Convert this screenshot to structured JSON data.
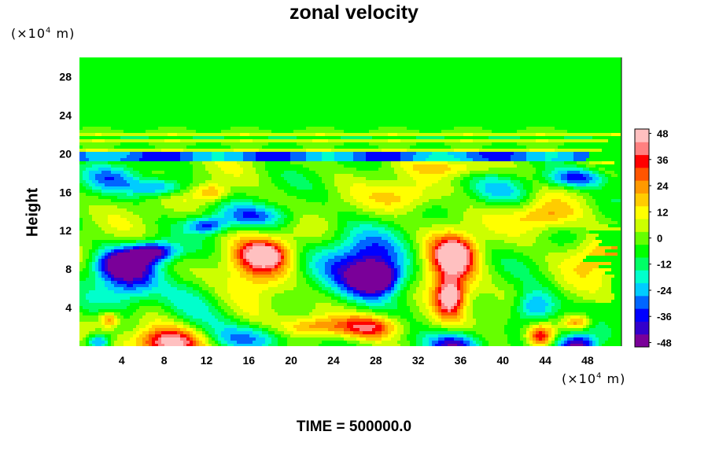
{
  "chart_data": {
    "type": "heatmap",
    "title": "zonal velocity",
    "xlabel": "",
    "ylabel": "Height",
    "x_unit_prefix": "(×10",
    "x_unit_exp": "4",
    "x_unit_suffix": " m)",
    "y_unit_prefix": "(×10",
    "y_unit_exp": "4",
    "y_unit_suffix": " m)",
    "x_ticks": [
      4,
      8,
      12,
      16,
      20,
      24,
      28,
      32,
      36,
      40,
      44,
      48
    ],
    "y_ticks": [
      4,
      8,
      12,
      16,
      20,
      24,
      28
    ],
    "xlim": [
      0,
      51.2
    ],
    "ylim": [
      0,
      30
    ],
    "colorbar": {
      "ticks": [
        48,
        36,
        24,
        12,
        0,
        -12,
        -24,
        -36,
        -48
      ],
      "range": [
        -50,
        50
      ],
      "colors": [
        "#7a0099",
        "#3300cc",
        "#0000ff",
        "#0066ff",
        "#00ccff",
        "#00ffcc",
        "#00ff66",
        "#00ff00",
        "#66ff00",
        "#ccff00",
        "#ffff00",
        "#ffcc00",
        "#ff9900",
        "#ff5500",
        "#ff0000",
        "#ff8080",
        "#ffc0c0"
      ]
    },
    "features": [
      {
        "x": 8.5,
        "y": 0.3,
        "v": 55,
        "rx": 3.2,
        "ry": 1.6
      },
      {
        "x": 2.8,
        "y": 2.8,
        "v": 28,
        "rx": 0.9,
        "ry": 0.8
      },
      {
        "x": 1.8,
        "y": 0.4,
        "v": -38,
        "rx": 1.2,
        "ry": 0.9
      },
      {
        "x": 4.5,
        "y": 6.5,
        "v": -28,
        "rx": 3.0,
        "ry": 3.0
      },
      {
        "x": 4.0,
        "y": 8.5,
        "v": -42,
        "rx": 2.5,
        "ry": 1.5
      },
      {
        "x": 7.0,
        "y": 9.8,
        "v": -45,
        "rx": 2.2,
        "ry": 1.0
      },
      {
        "x": 10.5,
        "y": 5.0,
        "v": -18,
        "rx": 3.0,
        "ry": 2.5
      },
      {
        "x": 16.8,
        "y": 7.0,
        "v": 22,
        "rx": 3.0,
        "ry": 4.0
      },
      {
        "x": 17.5,
        "y": 9.5,
        "v": 38,
        "rx": 2.3,
        "ry": 1.5
      },
      {
        "x": 16.5,
        "y": 0.8,
        "v": -30,
        "rx": 4.0,
        "ry": 1.5
      },
      {
        "x": 22.0,
        "y": 2.0,
        "v": 24,
        "rx": 3.0,
        "ry": 1.0
      },
      {
        "x": 27.5,
        "y": 2.0,
        "v": 40,
        "rx": 3.0,
        "ry": 1.3
      },
      {
        "x": 27.0,
        "y": 8.0,
        "v": -42,
        "rx": 4.0,
        "ry": 3.5
      },
      {
        "x": 28.0,
        "y": 7.0,
        "v": -50,
        "rx": 2.0,
        "ry": 1.5
      },
      {
        "x": 35.0,
        "y": 7.5,
        "v": 32,
        "rx": 2.5,
        "ry": 4.5
      },
      {
        "x": 35.0,
        "y": 5.0,
        "v": 42,
        "rx": 1.3,
        "ry": 1.8
      },
      {
        "x": 35.5,
        "y": 9.5,
        "v": 36,
        "rx": 1.7,
        "ry": 1.6
      },
      {
        "x": 35.5,
        "y": 0.0,
        "v": -52,
        "rx": 2.6,
        "ry": 1.6
      },
      {
        "x": 43.0,
        "y": 4.0,
        "v": -35,
        "rx": 2.0,
        "ry": 1.8
      },
      {
        "x": 43.5,
        "y": 1.0,
        "v": 42,
        "rx": 1.2,
        "ry": 1.2
      },
      {
        "x": 47.0,
        "y": 0.0,
        "v": -50,
        "rx": 1.8,
        "ry": 1.2
      },
      {
        "x": 47.0,
        "y": 2.5,
        "v": 30,
        "rx": 1.2,
        "ry": 0.8
      },
      {
        "x": 49.0,
        "y": 9.5,
        "v": 22,
        "rx": 3.0,
        "ry": 2.0
      },
      {
        "x": 16.5,
        "y": 13.5,
        "v": -26,
        "rx": 4.0,
        "ry": 1.2
      },
      {
        "x": 12.0,
        "y": 12.5,
        "v": -30,
        "rx": 1.8,
        "ry": 0.8
      },
      {
        "x": 7.5,
        "y": 16.5,
        "v": -32,
        "rx": 2.5,
        "ry": 0.9
      },
      {
        "x": 3.0,
        "y": 17.5,
        "v": -22,
        "rx": 3.0,
        "ry": 1.5
      },
      {
        "x": 12.5,
        "y": 16.0,
        "v": 24,
        "rx": 1.5,
        "ry": 0.9
      },
      {
        "x": 31.0,
        "y": 15.5,
        "v": 18,
        "rx": 3.0,
        "ry": 1.5
      },
      {
        "x": 40.0,
        "y": 16.0,
        "v": -18,
        "rx": 3.0,
        "ry": 1.5
      },
      {
        "x": 44.0,
        "y": 13.5,
        "v": 22,
        "rx": 3.0,
        "ry": 1.5
      },
      {
        "x": 47.0,
        "y": 17.5,
        "v": -36,
        "rx": 3.0,
        "ry": 1.0
      },
      {
        "x": 36.0,
        "y": 18.5,
        "v": 16,
        "rx": 4.0,
        "ry": 0.8
      }
    ]
  },
  "time_label": "TIME = 500000.0"
}
